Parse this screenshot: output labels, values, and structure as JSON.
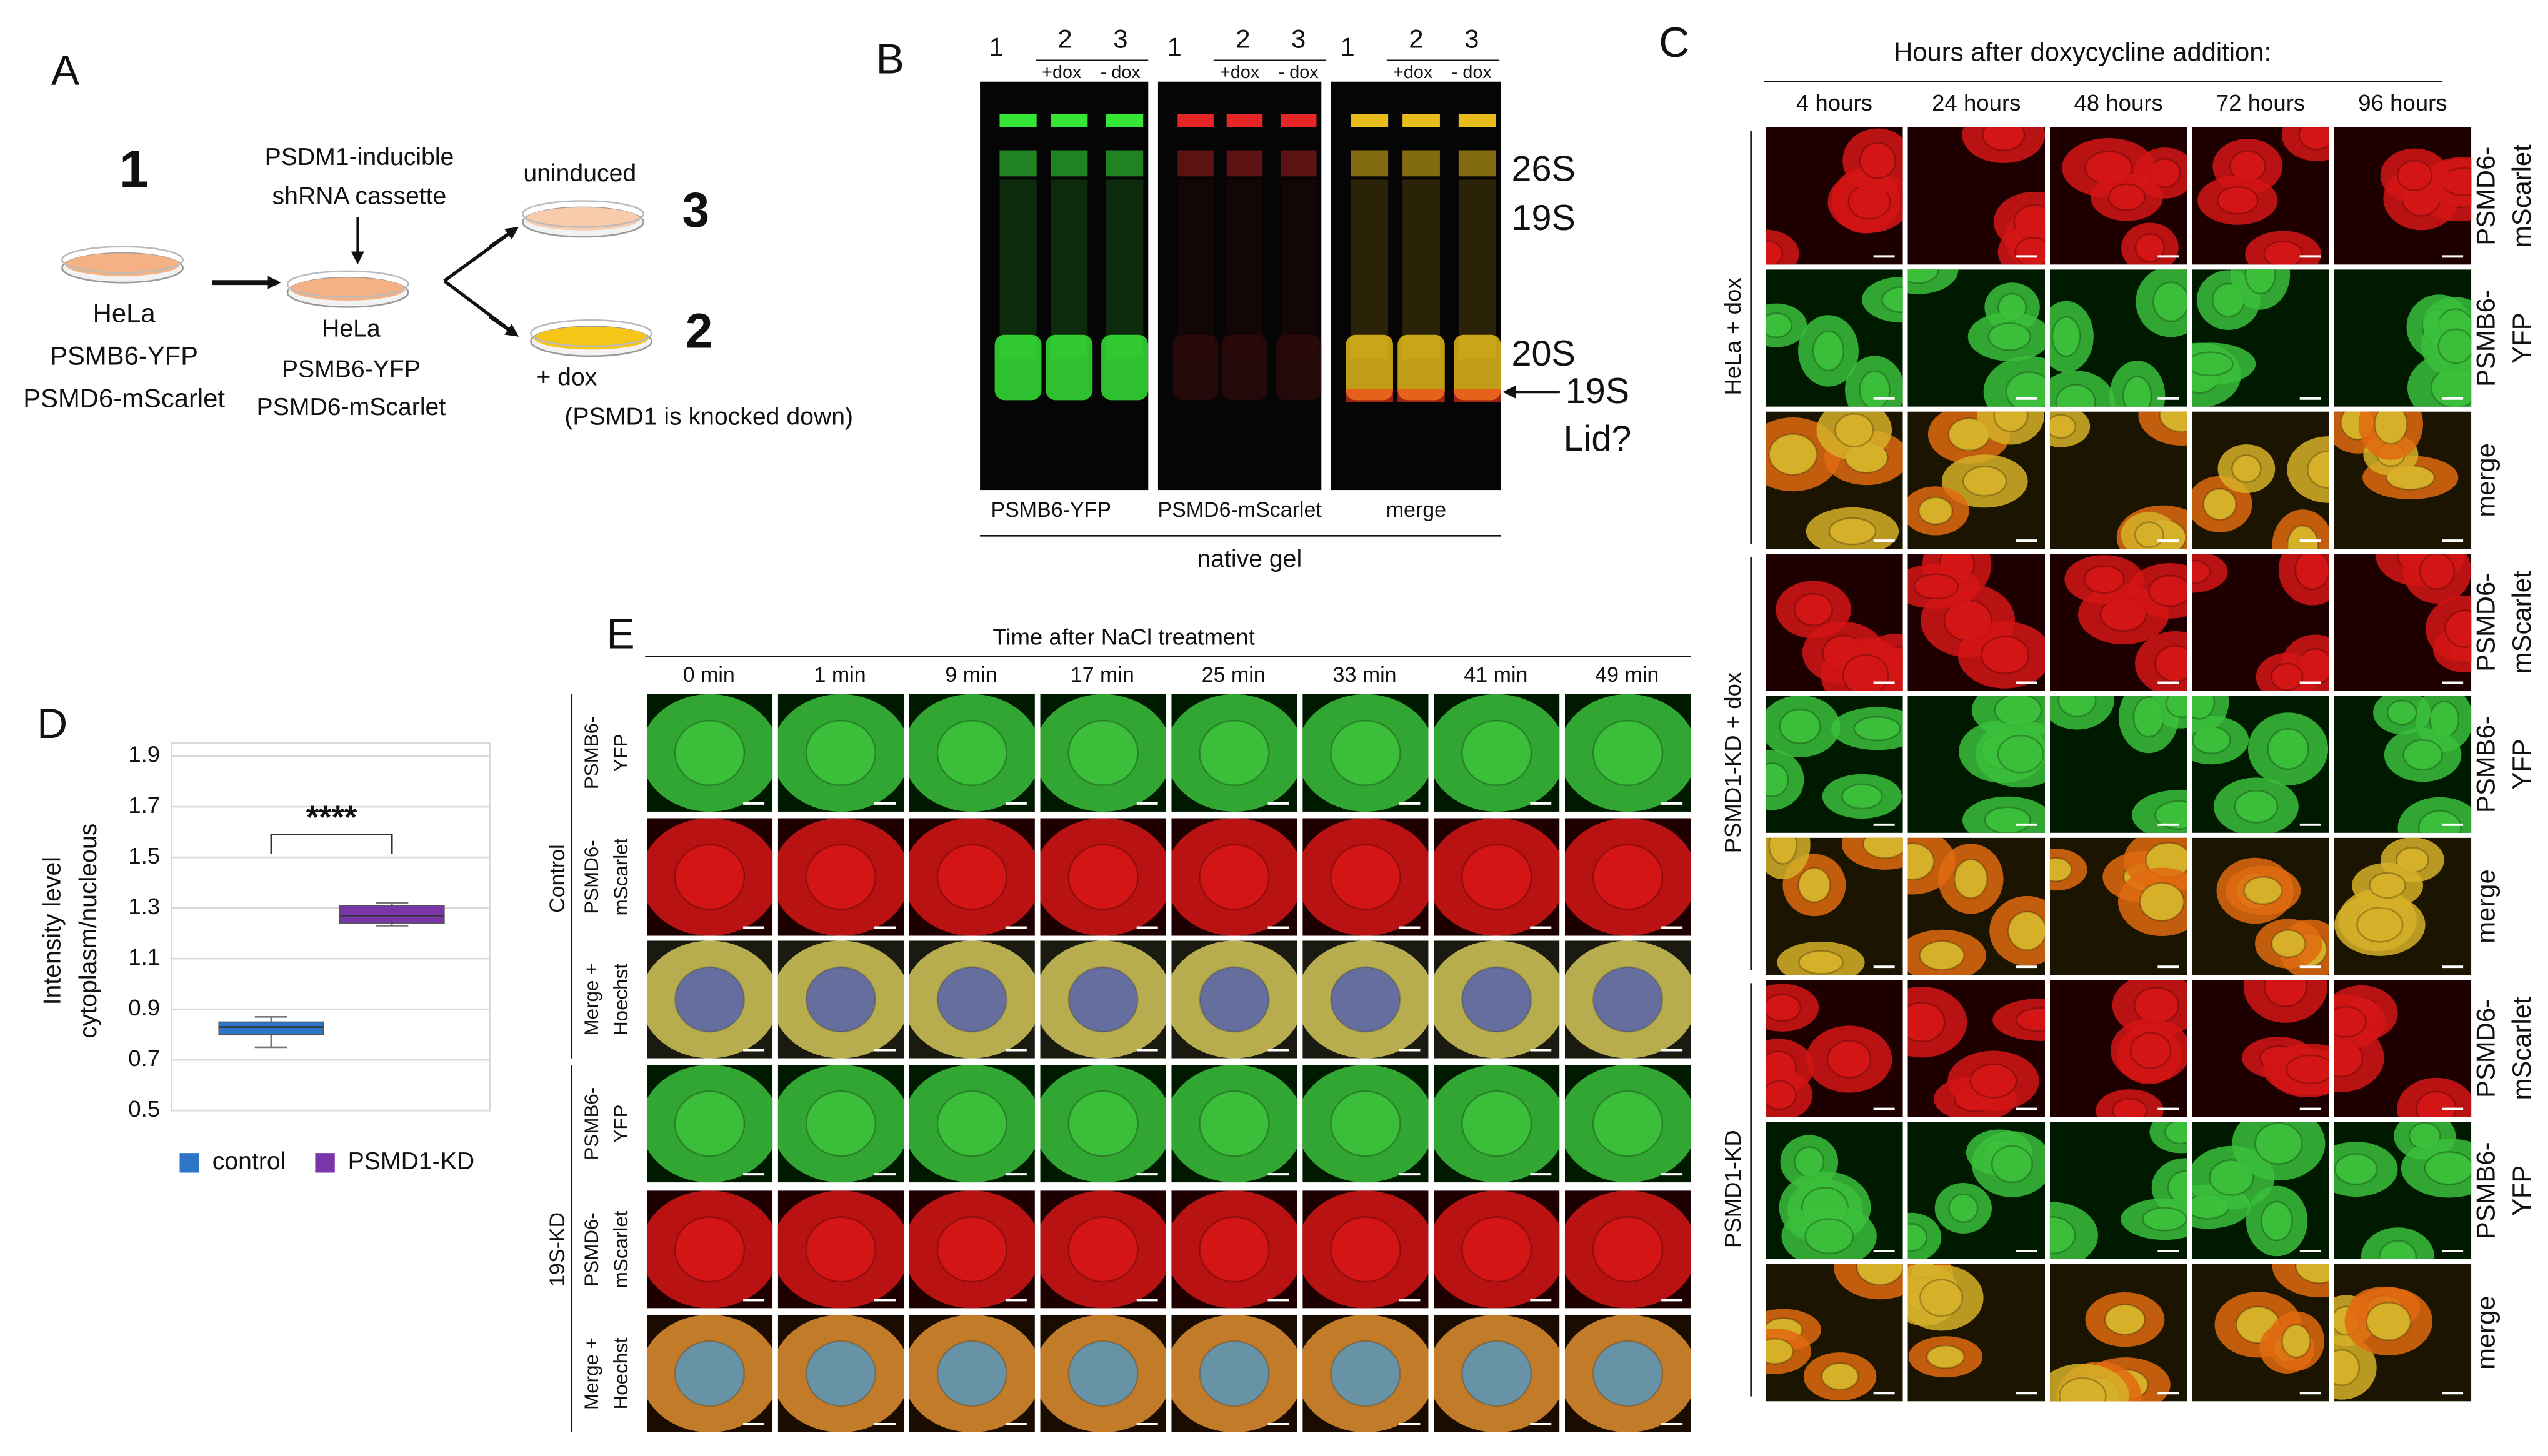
{
  "panel_labels": [
    "A",
    "B",
    "C",
    "D",
    "E"
  ],
  "panel_a": {
    "step1": "1",
    "dish1_label": [
      "HeLa",
      "PSMB6-YFP",
      "PSMD6-mScarlet"
    ],
    "cassette": [
      "PSDM1-inducible",
      "shRNA cassette"
    ],
    "dish2_label": [
      "HeLa",
      "PSMB6-YFP",
      "PSMD6-mScarlet"
    ],
    "uninduced": "uninduced",
    "step3": "3",
    "step2": "2",
    "dox": "+ dox",
    "dox_note": "(PSMD1 is knocked down)"
  },
  "panel_b": {
    "lane_numbers": [
      "1",
      "2",
      "3"
    ],
    "lane_conditions": [
      "+dox",
      "- dox"
    ],
    "gel_labels": [
      "PSMB6-YFP",
      "PSMD6-mScarlet",
      "merge"
    ],
    "caption": "native gel",
    "bands": [
      "26S",
      "19S",
      "20S",
      "19S",
      "Lid?"
    ]
  },
  "panel_c": {
    "title": "Hours after doxycycline addition:",
    "times": [
      "4 hours",
      "24 hours",
      "48 hours",
      "72 hours",
      "96 hours"
    ],
    "groups": [
      "HeLa + dox",
      "PSMD1-KD + dox",
      "PSMD1-KD"
    ],
    "rows": [
      [
        "PSMD6-",
        "mScarlet"
      ],
      [
        "PSMB6-",
        "YFP"
      ],
      [
        "merge"
      ]
    ]
  },
  "panel_e": {
    "title": "Time after NaCl treatment",
    "times": [
      "0 min",
      "1 min",
      "9 min",
      "17 min",
      "25 min",
      "33 min",
      "41 min",
      "49 min"
    ],
    "groups": [
      "Control",
      "19S-KD"
    ],
    "rows": [
      [
        "PSMB6-",
        "YFP"
      ],
      [
        "PSMD6-",
        "mScarlet"
      ],
      [
        "Merge +",
        "Hoechst"
      ]
    ]
  },
  "chart_data": {
    "type": "box",
    "ylabel": [
      "Intensity level",
      "cytoplasm/nucleous"
    ],
    "ylim": [
      0.5,
      1.9
    ],
    "yticks": [
      0.5,
      0.7,
      0.9,
      1.1,
      1.3,
      1.5,
      1.7,
      1.9
    ],
    "grid": true,
    "significance": "****",
    "legend": "bottom",
    "series": [
      {
        "name": "control",
        "color": "#2e75c7",
        "min": 0.75,
        "q1": 0.8,
        "median": 0.83,
        "q3": 0.85,
        "max": 0.87
      },
      {
        "name": "PSMD1-KD",
        "color": "#7a35a8",
        "min": 1.23,
        "q1": 1.24,
        "median": 1.27,
        "q3": 1.31,
        "max": 1.32
      }
    ]
  }
}
